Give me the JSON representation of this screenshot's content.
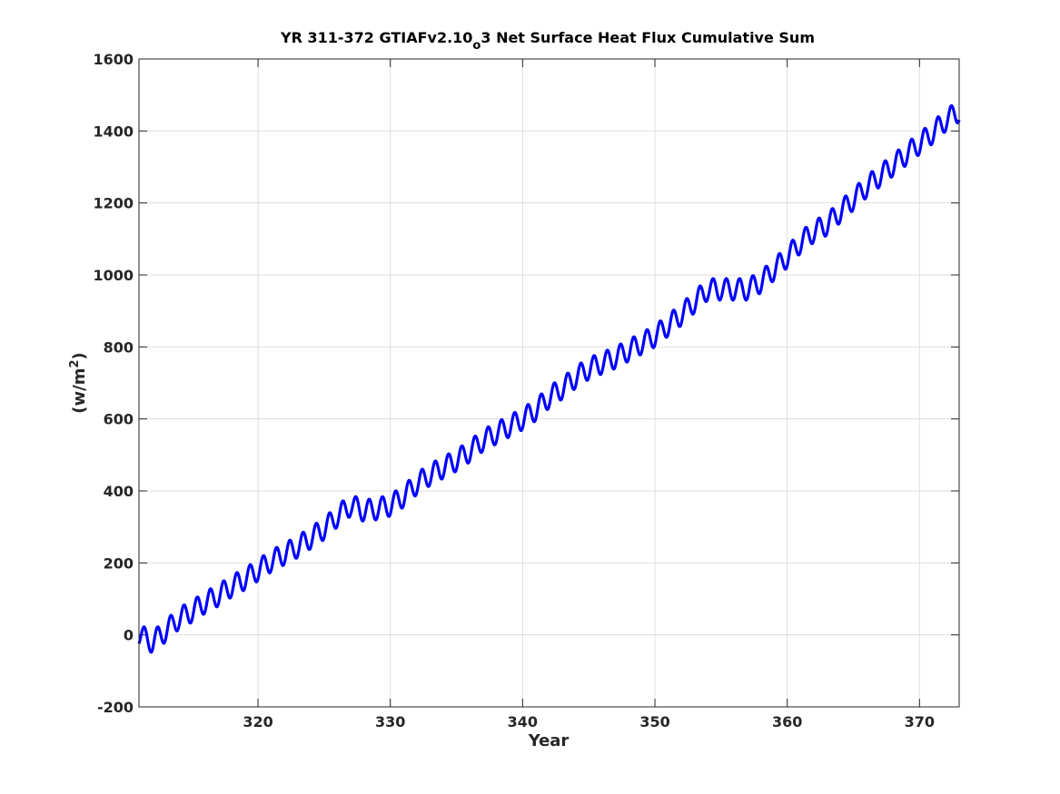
{
  "chart_data": {
    "type": "line",
    "title": "YR 311-372 GTIAFv2.10_o3 Net Surface Heat Flux  Cumulative Sum",
    "title_parts": {
      "pre": "YR 311-372 GTIAFv2.10",
      "sub": "o",
      "post": "3 Net Surface Heat Flux  Cumulative Sum"
    },
    "xlabel": "Year",
    "ylabel": "(w/m2)",
    "ylabel_parts": {
      "pre": "(w/m",
      "sup": "2",
      "post": ")"
    },
    "xlim": [
      311,
      373
    ],
    "ylim": [
      -200,
      1600
    ],
    "xticks": [
      320,
      330,
      340,
      350,
      360,
      370
    ],
    "yticks": [
      -200,
      0,
      200,
      400,
      600,
      800,
      1000,
      1200,
      1400,
      1600
    ],
    "xtick_labels": [
      "320",
      "330",
      "340",
      "350",
      "360",
      "370"
    ],
    "ytick_labels": [
      "-200",
      "0",
      "200",
      "400",
      "600",
      "800",
      "1000",
      "1200",
      "1400",
      "1600"
    ],
    "grid": true,
    "line_color": "#0000ff",
    "series": [
      {
        "x": [
          311,
          312,
          313,
          314,
          315,
          316,
          317,
          318,
          319,
          320,
          321,
          322,
          323,
          324,
          325,
          326,
          327,
          328,
          329,
          330,
          331,
          332,
          333,
          334,
          335,
          336,
          337,
          338,
          339,
          340,
          341,
          342,
          343,
          344,
          345,
          346,
          347,
          348,
          349,
          350,
          351,
          352,
          353,
          354,
          355,
          356,
          357,
          358,
          359,
          360,
          361,
          362,
          363,
          364,
          365,
          366,
          367,
          368,
          369,
          370,
          371,
          372,
          373
        ],
        "trend": [
          0,
          -20,
          10,
          45,
          65,
          90,
          110,
          135,
          155,
          180,
          205,
          225,
          245,
          270,
          295,
          330,
          360,
          345,
          350,
          360,
          385,
          420,
          445,
          465,
          485,
          510,
          540,
          560,
          580,
          600,
          625,
          660,
          685,
          715,
          740,
          755,
          770,
          790,
          810,
          830,
          860,
          890,
          925,
          960,
          960,
          960,
          960,
          980,
          1015,
          1050,
          1090,
          1120,
          1140,
          1175,
          1210,
          1245,
          1275,
          1305,
          1335,
          1365,
          1395,
          1430,
          1455
        ],
        "amplitude": 30,
        "cycles_per_year": 1,
        "phase_x": 311.4
      }
    ]
  }
}
